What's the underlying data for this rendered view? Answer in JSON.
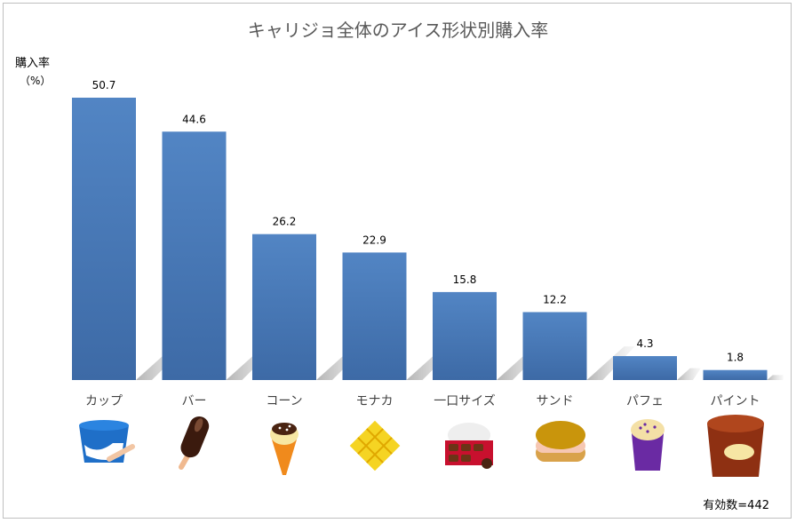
{
  "chart_data": {
    "type": "bar",
    "title": "キャリジョ全体のアイス形状別購入率",
    "ylabel": "購入率",
    "yunit": "（%）",
    "categories": [
      "カップ",
      "バー",
      "コーン",
      "モナカ",
      "一口サイズ",
      "サンド",
      "パフェ",
      "パイント"
    ],
    "values": [
      50.7,
      44.6,
      26.2,
      22.9,
      15.8,
      12.2,
      4.3,
      1.8
    ],
    "value_labels": [
      "50.7",
      "44.6",
      "26.2",
      "22.9",
      "15.8",
      "12.2",
      "4.3",
      "1.8"
    ],
    "ylim": [
      0,
      50.7
    ],
    "grid": false,
    "legend": "none",
    "bar_color": "#4a7ebb"
  },
  "note": "有効数=442",
  "icons": [
    "cup-ice-icon",
    "bar-ice-icon",
    "cone-ice-icon",
    "monaka-ice-icon",
    "bite-size-ice-icon",
    "sandwich-ice-icon",
    "parfait-ice-icon",
    "pint-ice-icon"
  ]
}
